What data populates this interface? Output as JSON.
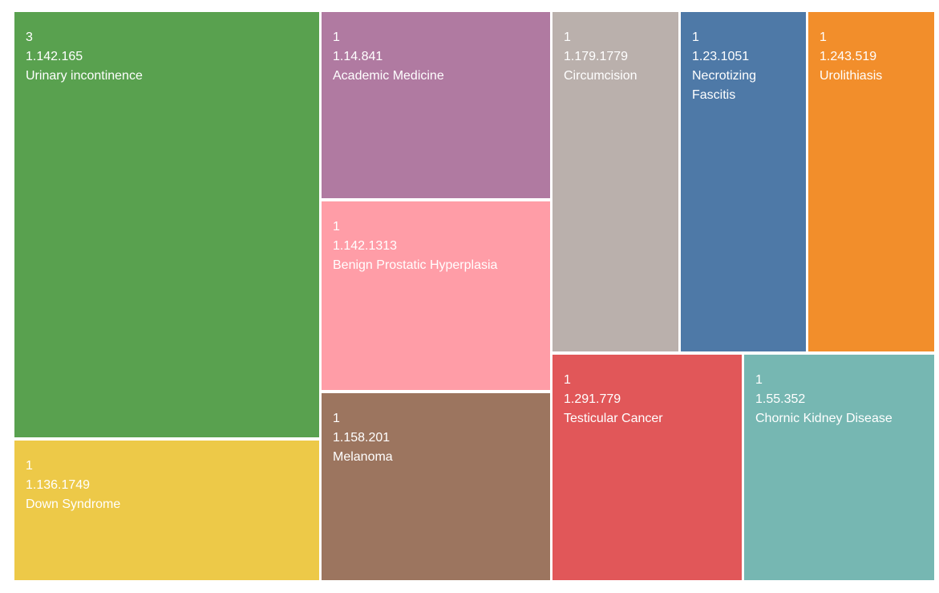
{
  "chart_data": {
    "type": "treemap",
    "cells": [
      {
        "count": 3,
        "code": "1.142.165",
        "label": "Urinary incontinence",
        "value": 3,
        "color": "#59A14F"
      },
      {
        "count": 1,
        "code": "1.136.1749",
        "label": "Down Syndrome",
        "value": 1,
        "color": "#EDC948"
      },
      {
        "count": 1,
        "code": "1.14.841",
        "label": "Academic Medicine",
        "value": 1,
        "color": "#B07AA1"
      },
      {
        "count": 1,
        "code": "1.142.1313",
        "label": "Benign Prostatic Hyperplasia",
        "value": 1,
        "color": "#FF9DA7"
      },
      {
        "count": 1,
        "code": "1.158.201",
        "label": "Melanoma",
        "value": 1,
        "color": "#9C755F"
      },
      {
        "count": 1,
        "code": "1.179.1779",
        "label": "Circumcision",
        "value": 1,
        "color": "#BAB0AC"
      },
      {
        "count": 1,
        "code": "1.23.1051",
        "label": "Necrotizing Fascitis",
        "value": 1,
        "color": "#4E79A7"
      },
      {
        "count": 1,
        "code": "1.243.519",
        "label": "Urolithiasis",
        "value": 1,
        "color": "#F28E2B"
      },
      {
        "count": 1,
        "code": "1.291.779",
        "label": "Testicular Cancer",
        "value": 1,
        "color": "#E15759"
      },
      {
        "count": 1,
        "code": "1.55.352",
        "label": "Chornic Kidney Disease",
        "value": 1,
        "color": "#76B7B2"
      }
    ]
  }
}
